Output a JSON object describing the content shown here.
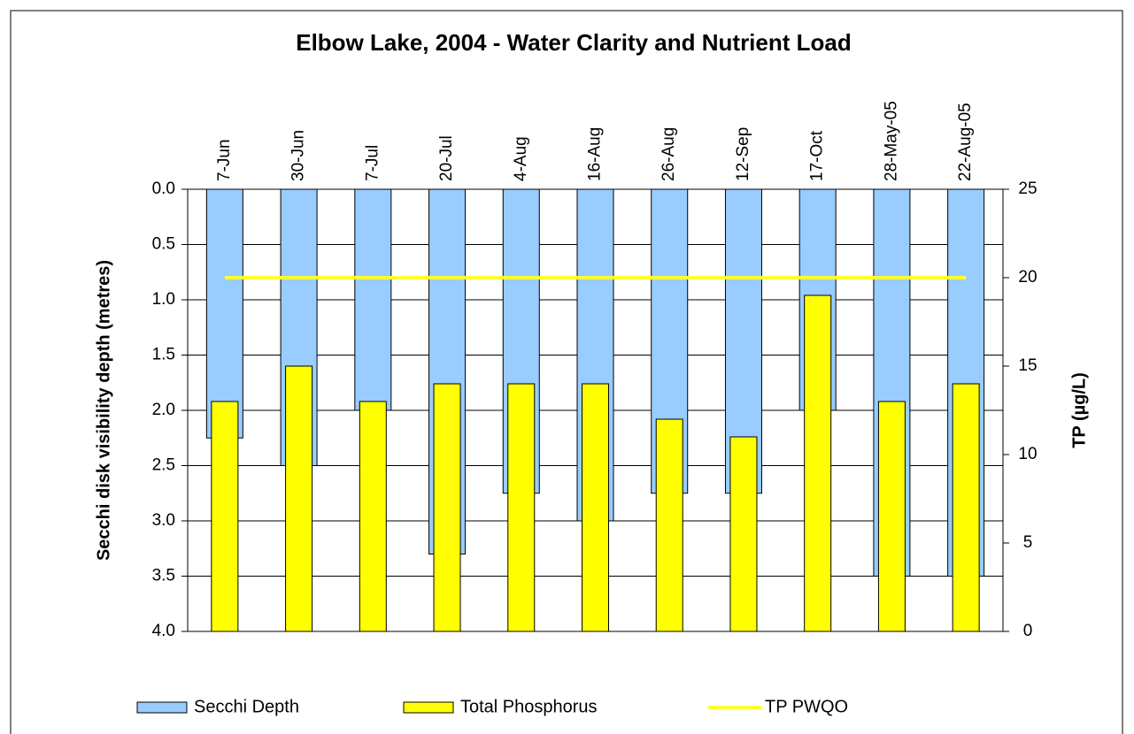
{
  "chart_data": {
    "type": "bar",
    "title": "Elbow Lake, 2004 - Water Clarity and Nutrient Load",
    "y_label": "Secchi disk visibility depth (metres)",
    "y2_label": "TP (µg/L)",
    "categories": [
      "7-Jun",
      "30-Jun",
      "7-Jul",
      "20-Jul",
      "4-Aug",
      "16-Aug",
      "26-Aug",
      "12-Sep",
      "17-Oct",
      "28-May-05",
      "22-Aug-05"
    ],
    "series": [
      {
        "name": "Secchi Depth",
        "type": "bar",
        "color": "#99ccff",
        "values": [
          2.25,
          2.5,
          2.0,
          3.3,
          2.75,
          3.0,
          2.75,
          2.75,
          2.0,
          3.5,
          3.5
        ]
      },
      {
        "name": "Total Phosphorus",
        "type": "bar",
        "axis": "y2",
        "color": "#ffff00",
        "values": [
          13,
          15,
          13,
          14,
          14,
          14,
          12,
          11,
          19,
          13,
          14
        ]
      },
      {
        "name": "TP PWQO",
        "type": "line",
        "axis": "y2",
        "color": "#ffff33",
        "values": [
          20,
          20,
          20,
          20,
          20,
          20,
          20,
          20,
          20,
          20,
          20
        ]
      }
    ],
    "ylim": [
      0,
      4
    ],
    "y_reversed": true,
    "yticks": [
      {
        "value": 0,
        "label": "0.0"
      },
      0.5,
      {
        "value": 1,
        "label": "1.0"
      },
      1.5,
      {
        "value": 2,
        "label": "2.0"
      },
      2.5,
      {
        "value": 3,
        "label": "3.0"
      },
      3.5,
      {
        "value": 4,
        "label": "4.0"
      }
    ],
    "y2lim": [
      0,
      25
    ],
    "y2ticks": [
      0,
      5,
      10,
      15,
      20,
      25
    ],
    "grid": true,
    "legend": "bottom"
  }
}
